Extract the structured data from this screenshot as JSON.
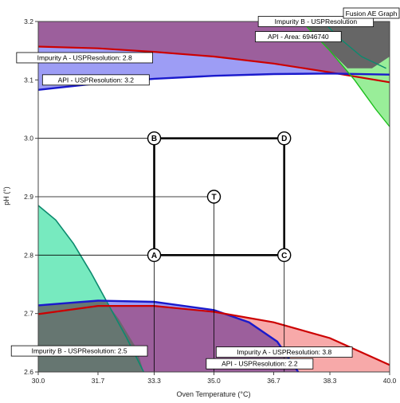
{
  "chart_data": {
    "type": "area",
    "title": "Fusion AE Graph",
    "xlabel": "Oven Temperature (°C)",
    "ylabel": "pH (°)",
    "xlim": [
      30.0,
      40.0
    ],
    "ylim": [
      2.6,
      3.2
    ],
    "x_ticks": [
      "30.0",
      "31.7",
      "33.3",
      "35.0",
      "36.7",
      "38.3",
      "40.0"
    ],
    "y_ticks": [
      "2.6",
      "2.7",
      "2.8",
      "2.9",
      "3.0",
      "3.1",
      "3.2"
    ],
    "colors": {
      "background": "#ffffff",
      "overlap_purple": "#9c5f9c",
      "blue_region": "#9d9df5",
      "red_region": "#f7a9a9",
      "teal_region": "#5fe6b4",
      "green_region": "#99ee99",
      "dark_overlap": "#666666",
      "api_res_line": "#1a1acc",
      "impurity_a_line": "#cc0000",
      "impurity_b_line": "#0c8a6e",
      "api_area_line": "#1cbf1c"
    },
    "boundaries": [
      {
        "name": "Impurity A - USPResolution",
        "label": "Impurity A - USPResolution: 2.8",
        "color": "#cc0000",
        "x": [
          30.0,
          31.7,
          33.3,
          35.0,
          36.7,
          38.3,
          40.0
        ],
        "y": [
          3.157,
          3.154,
          3.148,
          3.14,
          3.128,
          3.113,
          3.096
        ]
      },
      {
        "name": "API - USPResolution",
        "label": "API - USPResolution: 3.2",
        "color": "#1a1acc",
        "x": [
          30.0,
          31.7,
          33.3,
          35.0,
          36.7,
          38.3,
          40.0
        ],
        "y": [
          3.083,
          3.094,
          3.102,
          3.107,
          3.11,
          3.111,
          3.109
        ]
      },
      {
        "name": "Impurity B - USPResolution",
        "label": "Impurity B - USPResolution: 2.5",
        "color": "#0c8a6e",
        "x": [
          30.0,
          30.5,
          31.0,
          31.5,
          32.0,
          32.5,
          33.0
        ],
        "y": [
          2.885,
          2.86,
          2.82,
          2.77,
          2.715,
          2.66,
          2.6
        ]
      },
      {
        "name": "API - USPResolution",
        "label": "API - USPResolution: 2.2",
        "color": "#1a1acc",
        "x": [
          30.0,
          31.7,
          33.3,
          35.0,
          36.0,
          36.8,
          37.4
        ],
        "y": [
          2.714,
          2.722,
          2.72,
          2.706,
          2.685,
          2.652,
          2.6
        ]
      },
      {
        "name": "Impurity A - USPResolution",
        "label": "Impurity A - USPResolution: 3.8",
        "color": "#cc0000",
        "x": [
          30.0,
          31.7,
          33.3,
          35.0,
          36.7,
          38.3,
          40.0
        ],
        "y": [
          2.699,
          2.713,
          2.713,
          2.703,
          2.685,
          2.658,
          2.612
        ]
      },
      {
        "name": "API - Area",
        "label": "API - Area: 6946740",
        "color": "#1cbf1c",
        "x": [
          37.5,
          38.3,
          39.0,
          39.6,
          40.0
        ],
        "y": [
          3.2,
          3.15,
          3.1,
          3.05,
          3.02
        ]
      },
      {
        "name": "Impurity B - USPResolution",
        "label": "Impurity B - USPResolution",
        "color": "#0c8a6e",
        "x": [
          38.1,
          38.6,
          39.2,
          39.9
        ],
        "y": [
          3.2,
          3.17,
          3.14,
          3.12
        ]
      }
    ],
    "design_points": [
      {
        "name": "A",
        "x": 33.3,
        "y": 2.8
      },
      {
        "name": "B",
        "x": 33.3,
        "y": 3.0
      },
      {
        "name": "C",
        "x": 37.0,
        "y": 2.8
      },
      {
        "name": "D",
        "x": 37.0,
        "y": 3.0
      },
      {
        "name": "T",
        "x": 35.0,
        "y": 2.9
      }
    ],
    "grid": false,
    "legend": "none"
  }
}
